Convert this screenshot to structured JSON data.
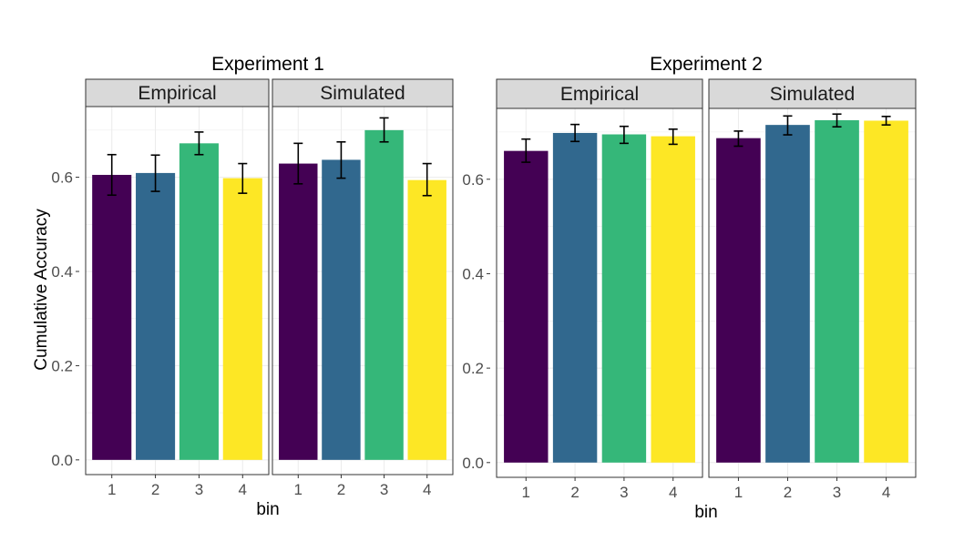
{
  "chart_data": [
    {
      "type": "bar",
      "title": "Experiment 1",
      "xlabel": "bin",
      "ylabel": "Cumulative Accuracy",
      "ylim": [
        0,
        0.75
      ],
      "yticks": [
        "0.0",
        "0.2",
        "0.4",
        "0.6"
      ],
      "categories": [
        "1",
        "2",
        "3",
        "4"
      ],
      "colors": [
        "#440154",
        "#31688e",
        "#35b779",
        "#fde725"
      ],
      "grid": true,
      "facets": [
        {
          "label": "Empirical",
          "values": [
            0.605,
            0.609,
            0.672,
            0.598
          ],
          "error_low": [
            0.562,
            0.57,
            0.648,
            0.566
          ],
          "error_high": [
            0.648,
            0.647,
            0.696,
            0.629
          ]
        },
        {
          "label": "Simulated",
          "values": [
            0.629,
            0.637,
            0.7,
            0.594
          ],
          "error_low": [
            0.586,
            0.598,
            0.675,
            0.561
          ],
          "error_high": [
            0.672,
            0.675,
            0.726,
            0.629
          ]
        }
      ]
    },
    {
      "type": "bar",
      "title": "Experiment 2",
      "xlabel": "bin",
      "ylabel": "",
      "ylim": [
        0,
        0.75
      ],
      "yticks": [
        "0.0",
        "0.2",
        "0.4",
        "0.6"
      ],
      "categories": [
        "1",
        "2",
        "3",
        "4"
      ],
      "colors": [
        "#440154",
        "#31688e",
        "#35b779",
        "#fde725"
      ],
      "grid": true,
      "facets": [
        {
          "label": "Empirical",
          "values": [
            0.66,
            0.698,
            0.695,
            0.691
          ],
          "error_low": [
            0.636,
            0.68,
            0.676,
            0.674
          ],
          "error_high": [
            0.685,
            0.716,
            0.712,
            0.706
          ]
        },
        {
          "label": "Simulated",
          "values": [
            0.687,
            0.715,
            0.725,
            0.724
          ],
          "error_low": [
            0.67,
            0.694,
            0.711,
            0.715
          ],
          "error_high": [
            0.702,
            0.734,
            0.738,
            0.733
          ]
        }
      ]
    }
  ]
}
